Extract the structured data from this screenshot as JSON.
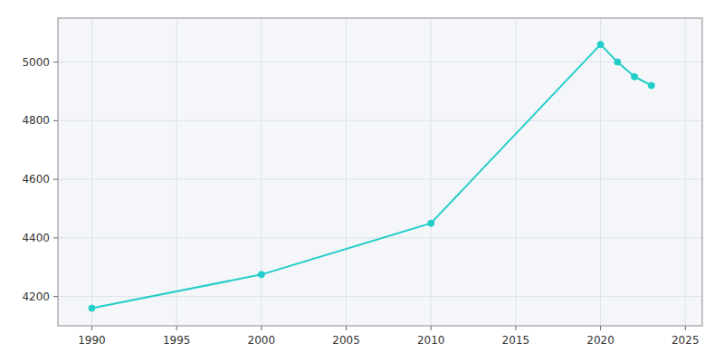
{
  "chart_data": {
    "type": "line",
    "x": [
      1990,
      2000,
      2010,
      2020,
      2021,
      2022,
      2023
    ],
    "values": [
      4160,
      4275,
      4450,
      5060,
      5000,
      4950,
      4920
    ],
    "color": "#22CEC8",
    "marker": "circle",
    "xlim": [
      1988,
      2026
    ],
    "ylim": [
      4100,
      5150
    ],
    "xticks": [
      1990,
      1995,
      2000,
      2005,
      2010,
      2015,
      2020,
      2025
    ],
    "yticks": [
      4200,
      4400,
      4600,
      4800,
      5000
    ],
    "grid": true
  }
}
